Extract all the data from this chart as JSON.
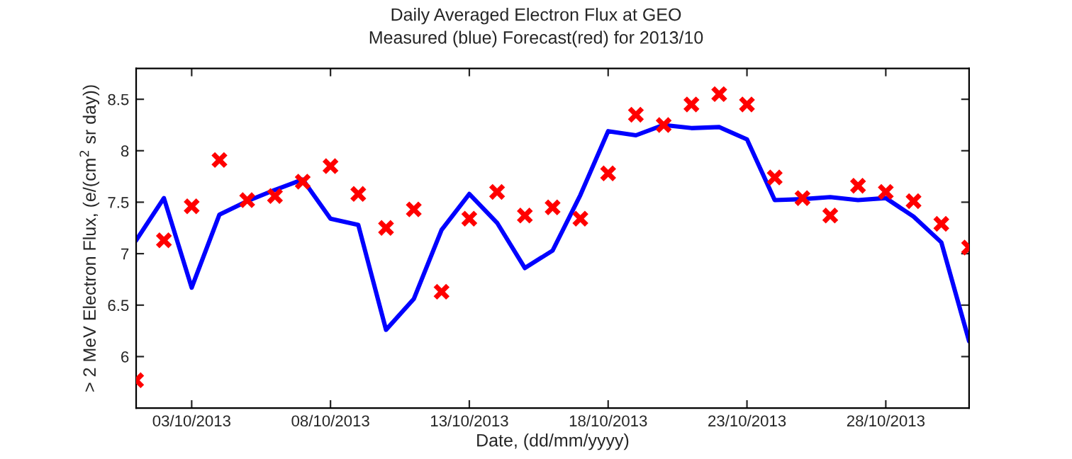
{
  "chart_data": {
    "type": "line",
    "title": "Daily Averaged Electron Flux at GEO",
    "subtitle": "Measured (blue) Forecast(red) for 2013/10",
    "xlabel": "Date, (dd/mm/yyyy)",
    "ylabel": "> 2 MeV Electron Flux, (e/(cm$^{2}$ sr day))",
    "x": [
      "2013-10-01",
      "2013-10-02",
      "2013-10-03",
      "2013-10-04",
      "2013-10-05",
      "2013-10-06",
      "2013-10-07",
      "2013-10-08",
      "2013-10-09",
      "2013-10-10",
      "2013-10-11",
      "2013-10-12",
      "2013-10-13",
      "2013-10-14",
      "2013-10-15",
      "2013-10-16",
      "2013-10-17",
      "2013-10-18",
      "2013-10-19",
      "2013-10-20",
      "2013-10-21",
      "2013-10-22",
      "2013-10-23",
      "2013-10-24",
      "2013-10-25",
      "2013-10-26",
      "2013-10-27",
      "2013-10-28",
      "2013-10-29",
      "2013-10-30",
      "2013-10-31"
    ],
    "series": [
      {
        "color": "#0000ff",
        "marker": "none",
        "line_style": "solid",
        "values": [
          7.13,
          7.54,
          6.67,
          7.38,
          7.51,
          7.62,
          7.72,
          7.34,
          7.28,
          6.26,
          6.56,
          7.23,
          7.58,
          7.3,
          6.86,
          7.03,
          7.57,
          8.19,
          8.15,
          8.25,
          8.22,
          8.23,
          8.11,
          7.52,
          7.53,
          7.55,
          7.52,
          7.54,
          7.36,
          7.11,
          6.15
        ]
      },
      {
        "type": "scatter",
        "color": "#ff0000",
        "marker": "cross",
        "values": [
          5.77,
          7.13,
          7.46,
          7.91,
          7.52,
          7.56,
          7.7,
          7.85,
          7.58,
          7.25,
          7.43,
          6.63,
          7.34,
          7.6,
          7.37,
          7.45,
          7.34,
          7.78,
          8.35,
          8.25,
          8.45,
          8.55,
          8.45,
          7.74,
          7.54,
          7.37,
          7.66,
          7.6,
          7.51,
          7.29,
          7.06
        ]
      }
    ],
    "xlim": [
      "2013-10-01",
      "2013-10-31"
    ],
    "xticks": [
      {
        "value": "2013-10-03",
        "label": "03/10/2013"
      },
      {
        "value": "2013-10-08",
        "label": "08/10/2013"
      },
      {
        "value": "2013-10-13",
        "label": "13/10/2013"
      },
      {
        "value": "2013-10-18",
        "label": "18/10/2013"
      },
      {
        "value": "2013-10-23",
        "label": "23/10/2013"
      },
      {
        "value": "2013-10-28",
        "label": "28/10/2013"
      }
    ],
    "ylim": [
      5.5,
      8.8
    ],
    "yticks": [
      6,
      6.5,
      7,
      7.5,
      8,
      8.5
    ],
    "grid": false,
    "legend": false
  }
}
